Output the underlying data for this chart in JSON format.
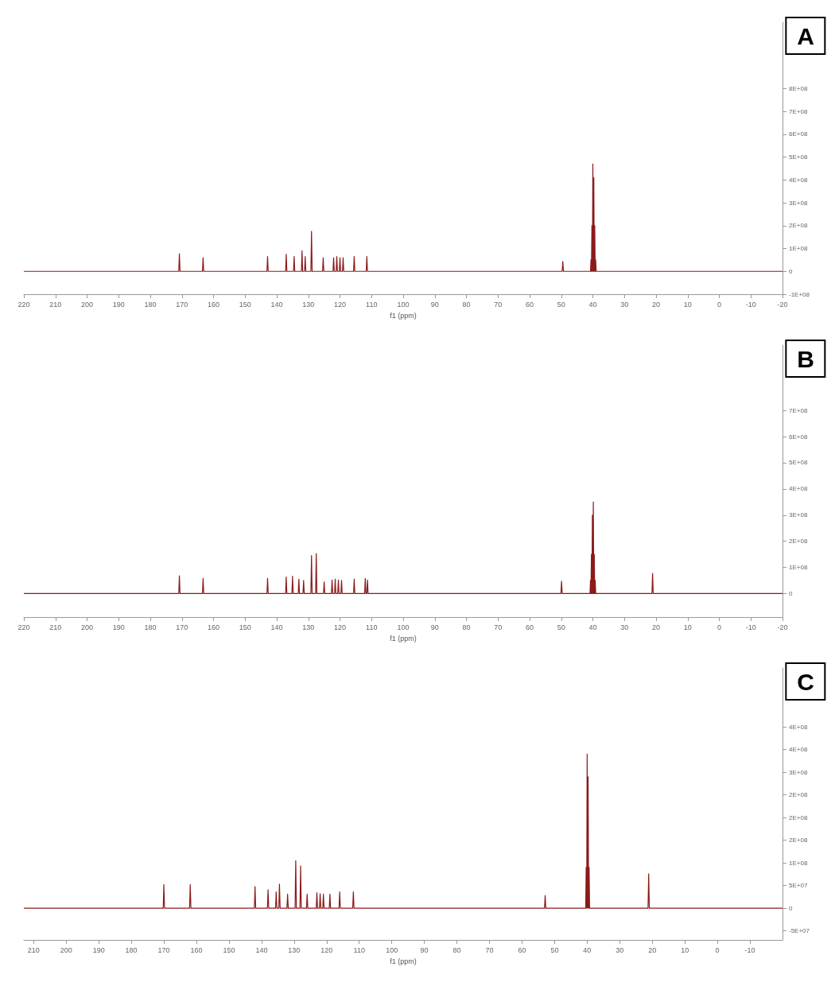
{
  "chart_data": [
    {
      "type": "line",
      "title": "A",
      "xlabel": "f1 (ppm)",
      "xlim": [
        220,
        -20
      ],
      "xticks": [
        220,
        210,
        200,
        190,
        180,
        170,
        160,
        150,
        140,
        130,
        120,
        110,
        100,
        90,
        80,
        70,
        60,
        50,
        40,
        30,
        20,
        10,
        0,
        -10,
        -20
      ],
      "ylim": [
        -100000000,
        1090000000
      ],
      "yticks": [
        {
          "value": -100000000,
          "label": "-1E+08"
        },
        {
          "value": 0,
          "label": "0"
        },
        {
          "value": 100000000,
          "label": "1E+08"
        },
        {
          "value": 200000000,
          "label": "2E+08"
        },
        {
          "value": 300000000,
          "label": "3E+08"
        },
        {
          "value": 400000000,
          "label": "4E+08"
        },
        {
          "value": 500000000,
          "label": "5E+08"
        },
        {
          "value": 600000000,
          "label": "6E+08"
        },
        {
          "value": 700000000,
          "label": "7E+08"
        },
        {
          "value": 800000000,
          "label": "8E+08"
        }
      ],
      "grid": false,
      "marker": "none",
      "line_style": "solid",
      "series": [
        {
          "color": "#8b1a1a",
          "x": [
            220,
            171.0,
            170.8,
            170.6,
            163.5,
            163.3,
            163.1,
            143.1,
            142.9,
            142.7,
            137.2,
            137.0,
            136.8,
            134.7,
            134.5,
            134.3,
            132.2,
            132.0,
            131.8,
            131.2,
            131.0,
            130.8,
            129.2,
            129.0,
            128.8,
            125.5,
            125.3,
            125.1,
            122.2,
            122.0,
            121.8,
            121.2,
            121.0,
            120.8,
            120.2,
            120.0,
            119.8,
            119.2,
            119.0,
            118.8,
            115.7,
            115.5,
            115.3,
            111.7,
            111.5,
            111.3,
            49.7,
            49.5,
            49.3,
            40.75,
            40.6,
            40.45,
            40.3,
            40.15,
            40.0,
            39.85,
            39.7,
            39.55,
            39.4,
            39.25,
            39.1,
            38.95,
            -20
          ],
          "values": [
            0,
            0,
            77000000,
            0,
            0,
            60000000,
            0,
            0,
            65000000,
            0,
            0,
            75000000,
            0,
            0,
            65000000,
            0,
            0,
            90000000,
            0,
            0,
            65000000,
            0,
            0,
            175000000,
            0,
            0,
            60000000,
            0,
            0,
            60000000,
            0,
            0,
            65000000,
            0,
            0,
            60000000,
            0,
            0,
            60000000,
            0,
            0,
            65000000,
            0,
            0,
            65000000,
            0,
            0,
            43000000,
            0,
            0,
            50000000,
            0,
            200000000,
            0,
            470000000,
            0,
            410000000,
            0,
            200000000,
            0,
            50000000,
            0,
            0
          ]
        }
      ]
    },
    {
      "type": "line",
      "title": "B",
      "xlabel": "f1 (ppm)",
      "xlim": [
        220,
        -20
      ],
      "xticks": [
        220,
        210,
        200,
        190,
        180,
        170,
        160,
        150,
        140,
        130,
        120,
        110,
        100,
        90,
        80,
        70,
        60,
        50,
        40,
        30,
        20,
        10,
        0,
        -10,
        -20
      ],
      "ylim": [
        -90000000,
        950000000
      ],
      "yticks": [
        {
          "value": 0,
          "label": "0"
        },
        {
          "value": 100000000,
          "label": "1E+08"
        },
        {
          "value": 200000000,
          "label": "2E+08"
        },
        {
          "value": 300000000,
          "label": "3E+08"
        },
        {
          "value": 400000000,
          "label": "4E+08"
        },
        {
          "value": 500000000,
          "label": "5E+08"
        },
        {
          "value": 600000000,
          "label": "6E+08"
        },
        {
          "value": 700000000,
          "label": "7E+08"
        }
      ],
      "grid": false,
      "marker": "none",
      "line_style": "solid",
      "series": [
        {
          "color": "#8b1a1a",
          "x": [
            220,
            171.0,
            170.8,
            170.6,
            163.5,
            163.3,
            163.1,
            143.1,
            142.9,
            142.7,
            137.2,
            137.0,
            136.8,
            135.2,
            135.0,
            134.8,
            133.2,
            133.0,
            132.8,
            131.7,
            131.5,
            131.3,
            129.2,
            129.0,
            128.8,
            127.7,
            127.5,
            127.3,
            125.2,
            125.0,
            124.8,
            122.7,
            122.5,
            122.3,
            121.7,
            121.5,
            121.3,
            120.7,
            120.5,
            120.3,
            119.7,
            119.5,
            119.3,
            115.7,
            115.5,
            115.3,
            112.2,
            112.0,
            111.8,
            111.5,
            111.3,
            111.1,
            50.1,
            49.9,
            49.7,
            40.9,
            40.75,
            40.6,
            40.45,
            40.3,
            40.15,
            40.0,
            39.85,
            39.7,
            39.55,
            39.4,
            39.25,
            39.1,
            38.95,
            21.3,
            21.1,
            20.9,
            -20
          ],
          "values": [
            0,
            0,
            68000000,
            0,
            0,
            58000000,
            0,
            0,
            58000000,
            0,
            0,
            63000000,
            0,
            0,
            66000000,
            0,
            0,
            55000000,
            0,
            0,
            50000000,
            0,
            0,
            145000000,
            0,
            0,
            153000000,
            0,
            0,
            44000000,
            0,
            0,
            52000000,
            0,
            0,
            55000000,
            0,
            0,
            52000000,
            0,
            0,
            50000000,
            0,
            0,
            55000000,
            0,
            0,
            58000000,
            0,
            0,
            52000000,
            0,
            0,
            47000000,
            0,
            0,
            50000000,
            0,
            150000000,
            0,
            300000000,
            0,
            350000000,
            0,
            150000000,
            0,
            50000000,
            0,
            0,
            0,
            77000000,
            0,
            0
          ]
        }
      ]
    },
    {
      "type": "line",
      "title": "C",
      "xlabel": "f1 (ppm)",
      "xlim": [
        213,
        -20
      ],
      "xticks": [
        210,
        200,
        190,
        180,
        170,
        160,
        150,
        140,
        130,
        120,
        110,
        100,
        90,
        80,
        70,
        60,
        50,
        40,
        30,
        20,
        10,
        0,
        -10
      ],
      "ylim": [
        -70000000,
        530000000
      ],
      "yticks": [
        {
          "value": -50000000,
          "label": "-5E+07"
        },
        {
          "value": 0,
          "label": "0"
        },
        {
          "value": 50000000,
          "label": "5E+07"
        },
        {
          "value": 100000000,
          "label": "1E+08"
        },
        {
          "value": 150000000,
          "label": "2E+08"
        },
        {
          "value": 200000000,
          "label": "2E+08"
        },
        {
          "value": 250000000,
          "label": "2E+08"
        },
        {
          "value": 300000000,
          "label": "3E+08"
        },
        {
          "value": 350000000,
          "label": "4E+08"
        },
        {
          "value": 400000000,
          "label": "4E+08"
        }
      ],
      "grid": false,
      "marker": "none",
      "line_style": "solid",
      "series": [
        {
          "color": "#8b1a1a",
          "x": [
            213,
            170.2,
            170.0,
            169.8,
            162.1,
            161.9,
            161.7,
            142.2,
            142.0,
            141.8,
            138.2,
            138.0,
            137.8,
            135.7,
            135.5,
            135.3,
            134.7,
            134.5,
            134.3,
            132.2,
            132.0,
            131.8,
            129.7,
            129.5,
            129.3,
            128.2,
            128.0,
            127.8,
            126.2,
            126.0,
            125.8,
            123.2,
            123.0,
            122.8,
            122.2,
            122.0,
            121.8,
            121.2,
            121.0,
            120.8,
            119.2,
            119.0,
            118.8,
            116.2,
            116.0,
            115.8,
            112.0,
            111.8,
            111.6,
            53.1,
            52.9,
            52.7,
            40.45,
            40.3,
            40.15,
            40.0,
            39.85,
            39.7,
            39.55,
            39.4,
            39.25,
            21.3,
            21.1,
            20.9,
            -20
          ],
          "values": [
            0,
            0,
            52000000,
            0,
            0,
            52000000,
            0,
            0,
            48000000,
            0,
            0,
            41000000,
            0,
            0,
            36000000,
            0,
            0,
            53000000,
            0,
            0,
            31000000,
            0,
            0,
            105000000,
            0,
            0,
            93000000,
            0,
            0,
            31000000,
            0,
            0,
            34000000,
            0,
            0,
            32000000,
            0,
            0,
            31000000,
            0,
            0,
            31000000,
            0,
            0,
            36000000,
            0,
            0,
            36000000,
            0,
            0,
            28000000,
            0,
            0,
            90000000,
            0,
            340000000,
            0,
            290000000,
            0,
            90000000,
            0,
            0,
            76000000,
            0,
            0
          ]
        }
      ]
    }
  ]
}
